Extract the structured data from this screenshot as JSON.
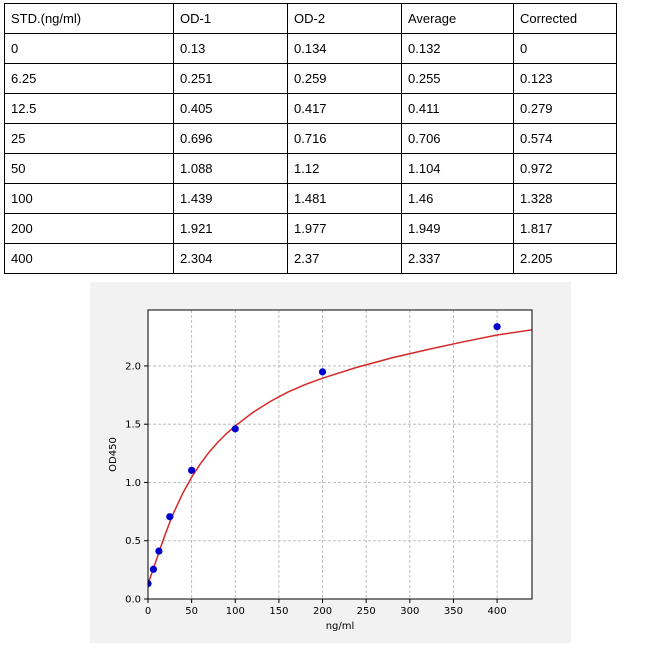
{
  "table": {
    "headers": [
      "STD.(ng/ml)",
      "OD-1",
      "OD-2",
      "Average",
      "Corrected"
    ],
    "rows": [
      [
        "0",
        "0.13",
        "0.134",
        "0.132",
        "0"
      ],
      [
        "6.25",
        "0.251",
        "0.259",
        "0.255",
        "0.123"
      ],
      [
        "12.5",
        "0.405",
        "0.417",
        "0.411",
        "0.279"
      ],
      [
        "25",
        "0.696",
        "0.716",
        "0.706",
        "0.574"
      ],
      [
        "50",
        "1.088",
        "1.12",
        "1.104",
        "0.972"
      ],
      [
        "100",
        "1.439",
        "1.481",
        "1.46",
        "1.328"
      ],
      [
        "200",
        "1.921",
        "1.977",
        "1.949",
        "1.817"
      ],
      [
        "400",
        "2.304",
        "2.37",
        "2.337",
        "2.205"
      ]
    ]
  },
  "chart_data": {
    "type": "scatter",
    "title": "",
    "xlabel": "ng/ml",
    "ylabel": "OD450",
    "xlim": [
      0,
      440
    ],
    "ylim": [
      0,
      2.48
    ],
    "xticks": [
      0,
      50,
      100,
      150,
      200,
      250,
      300,
      350,
      400
    ],
    "yticks": [
      0.0,
      0.5,
      1.0,
      1.5,
      2.0
    ],
    "xtick_labels": [
      "0",
      "50",
      "100",
      "150",
      "200",
      "250",
      "300",
      "350",
      "400"
    ],
    "ytick_labels": [
      "0.0",
      "0.5",
      "1.0",
      "1.5",
      "2.0"
    ],
    "grid": true,
    "series": [
      {
        "points": [
          {
            "x": 0,
            "y": 0.132
          },
          {
            "x": 6.25,
            "y": 0.255
          },
          {
            "x": 12.5,
            "y": 0.411
          },
          {
            "x": 25,
            "y": 0.706
          },
          {
            "x": 50,
            "y": 1.104
          },
          {
            "x": 100,
            "y": 1.46
          },
          {
            "x": 200,
            "y": 1.949
          },
          {
            "x": 400,
            "y": 2.337
          }
        ],
        "marker_color": "#0000cc"
      }
    ],
    "fit_curve": {
      "color": "#d62728",
      "points": [
        {
          "x": 0,
          "y": 0.132
        },
        {
          "x": 5,
          "y": 0.235
        },
        {
          "x": 10,
          "y": 0.345
        },
        {
          "x": 15,
          "y": 0.455
        },
        {
          "x": 20,
          "y": 0.56
        },
        {
          "x": 25,
          "y": 0.66
        },
        {
          "x": 30,
          "y": 0.75
        },
        {
          "x": 40,
          "y": 0.91
        },
        {
          "x": 50,
          "y": 1.045
        },
        {
          "x": 60,
          "y": 1.16
        },
        {
          "x": 70,
          "y": 1.26
        },
        {
          "x": 80,
          "y": 1.345
        },
        {
          "x": 90,
          "y": 1.42
        },
        {
          "x": 100,
          "y": 1.485
        },
        {
          "x": 120,
          "y": 1.6
        },
        {
          "x": 140,
          "y": 1.695
        },
        {
          "x": 160,
          "y": 1.775
        },
        {
          "x": 180,
          "y": 1.84
        },
        {
          "x": 200,
          "y": 1.895
        },
        {
          "x": 240,
          "y": 1.99
        },
        {
          "x": 280,
          "y": 2.07
        },
        {
          "x": 320,
          "y": 2.14
        },
        {
          "x": 360,
          "y": 2.205
        },
        {
          "x": 400,
          "y": 2.265
        },
        {
          "x": 440,
          "y": 2.31
        }
      ]
    }
  }
}
